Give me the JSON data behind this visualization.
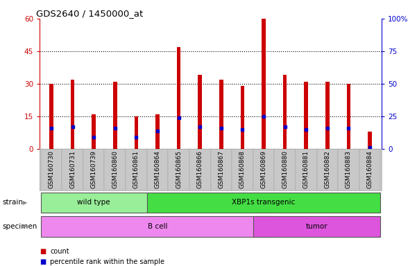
{
  "title": "GDS2640 / 1450000_at",
  "samples": [
    "GSM160730",
    "GSM160731",
    "GSM160739",
    "GSM160860",
    "GSM160861",
    "GSM160864",
    "GSM160865",
    "GSM160866",
    "GSM160867",
    "GSM160868",
    "GSM160869",
    "GSM160880",
    "GSM160881",
    "GSM160882",
    "GSM160883",
    "GSM160884"
  ],
  "counts": [
    30,
    32,
    16,
    31,
    15,
    16,
    47,
    34,
    32,
    29,
    60,
    34,
    31,
    31,
    30,
    8
  ],
  "percentile_ranks": [
    16,
    17,
    9,
    16,
    9,
    14,
    24,
    17,
    16,
    15,
    25,
    17,
    15,
    16,
    16,
    1
  ],
  "ylim_left": [
    0,
    60
  ],
  "ylim_right": [
    0,
    100
  ],
  "yticks_left": [
    0,
    15,
    30,
    45,
    60
  ],
  "yticks_right": [
    0,
    25,
    50,
    75,
    100
  ],
  "yticklabels_right": [
    "0",
    "25",
    "50",
    "75",
    "100%"
  ],
  "bar_color": "#cc0000",
  "marker_color": "#0000cc",
  "bar_width": 0.18,
  "grid_color": "#000000",
  "bg_color": "#ffffff",
  "plot_bg": "#ffffff",
  "tick_label_bg": "#c8c8c8",
  "strain_groups": [
    {
      "label": "wild type",
      "start": 0,
      "end": 4,
      "color": "#99ee99"
    },
    {
      "label": "XBP1s transgenic",
      "start": 5,
      "end": 15,
      "color": "#44dd44"
    }
  ],
  "specimen_groups": [
    {
      "label": "B cell",
      "start": 0,
      "end": 10,
      "color": "#ee88ee"
    },
    {
      "label": "tumor",
      "start": 10,
      "end": 15,
      "color": "#dd55dd"
    }
  ],
  "legend_items": [
    {
      "color": "#cc0000",
      "label": "count"
    },
    {
      "color": "#0000cc",
      "label": "percentile rank within the sample"
    }
  ],
  "strain_label": "strain",
  "specimen_label": "specimen",
  "left_axis_color": "#cc0000",
  "right_axis_color": "#0000cc"
}
